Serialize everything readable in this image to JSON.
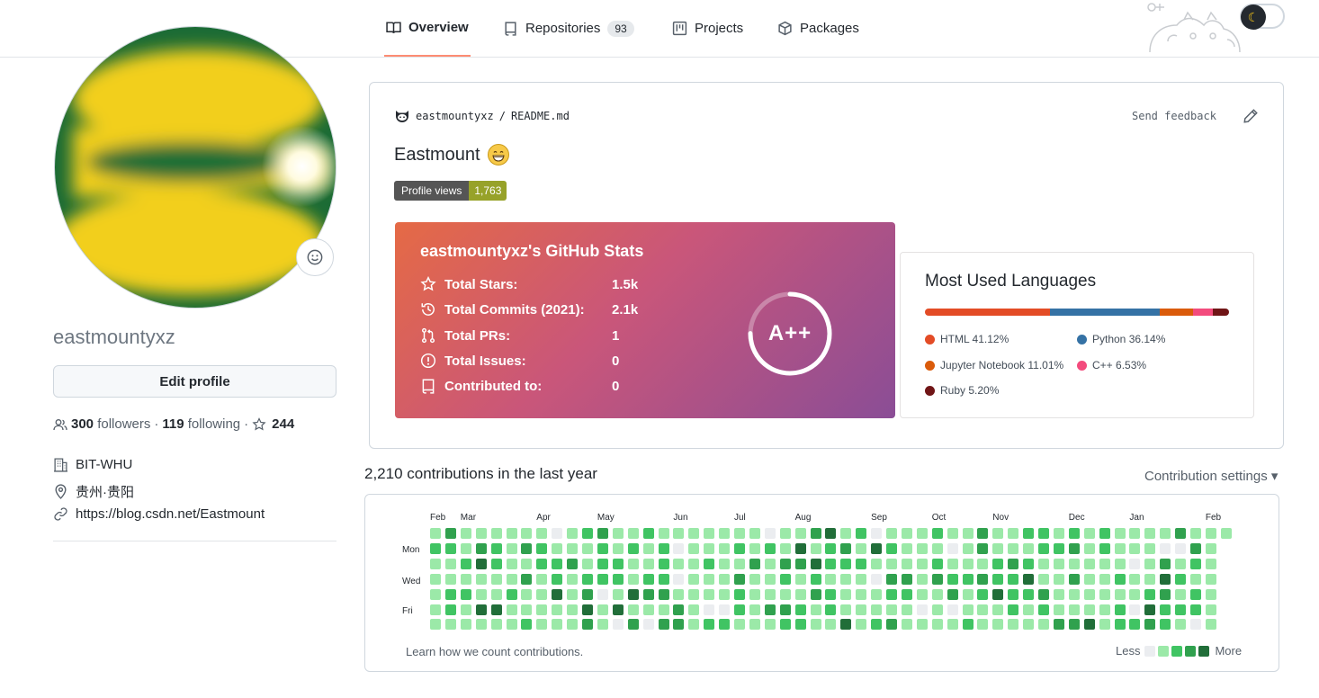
{
  "nav": {
    "tabs": [
      {
        "label": "Overview",
        "icon": "book-icon",
        "active": true
      },
      {
        "label": "Repositories",
        "icon": "repo-icon",
        "count": "93"
      },
      {
        "label": "Projects",
        "icon": "project-icon"
      },
      {
        "label": "Packages",
        "icon": "package-icon"
      }
    ],
    "theme_icon": "moon-icon"
  },
  "profile": {
    "username": "eastmountyxz",
    "edit_label": "Edit profile",
    "followers_count": "300",
    "followers_label": "followers",
    "following_count": "119",
    "following_label": "following",
    "stars_count": "244",
    "organization": "BIT-WHU",
    "location": "贵州·贵阳",
    "website": "https://blog.csdn.net/Eastmount"
  },
  "readme": {
    "owner": "eastmountyxz",
    "file": "README.md",
    "separator": "/",
    "send_feedback": "Send feedback",
    "title": "Eastmount",
    "badge_label": "Profile views",
    "badge_value": "1,763",
    "stats": {
      "title": "eastmountyxz's GitHub Stats",
      "rows": [
        {
          "label": "Total Stars:",
          "value": "1.5k",
          "icon": "star-icon"
        },
        {
          "label": "Total Commits (2021):",
          "value": "2.1k",
          "icon": "history-icon"
        },
        {
          "label": "Total PRs:",
          "value": "1",
          "icon": "pull-request-icon"
        },
        {
          "label": "Total Issues:",
          "value": "0",
          "icon": "issue-icon"
        },
        {
          "label": "Contributed to:",
          "value": "0",
          "icon": "repo-icon"
        }
      ],
      "grade": "A++",
      "grade_progress": 0.75
    },
    "languages": {
      "title": "Most Used Languages",
      "items": [
        {
          "name": "HTML",
          "percent": 41.12,
          "label": "HTML 41.12%",
          "color": "#e34c26"
        },
        {
          "name": "Python",
          "percent": 36.14,
          "label": "Python 36.14%",
          "color": "#3572A5"
        },
        {
          "name": "Jupyter Notebook",
          "percent": 11.01,
          "label": "Jupyter Notebook 11.01%",
          "color": "#DA5B0B"
        },
        {
          "name": "C++",
          "percent": 6.53,
          "label": "C++ 6.53%",
          "color": "#f34b7d"
        },
        {
          "name": "Ruby",
          "percent": 5.2,
          "label": "Ruby 5.20%",
          "color": "#701516"
        }
      ]
    }
  },
  "contributions": {
    "heading": "2,210 contributions in the last year",
    "settings_label": "Contribution settings ▾",
    "months": [
      "Feb",
      "Mar",
      "Apr",
      "May",
      "Jun",
      "Jul",
      "Aug",
      "Sep",
      "Oct",
      "Nov",
      "Dec",
      "Jan",
      "Feb"
    ],
    "month_weeks": [
      0,
      2,
      7,
      11,
      16,
      20,
      24,
      29,
      33,
      37,
      42,
      46,
      51
    ],
    "day_labels": [
      "Mon",
      "Wed",
      "Fri"
    ],
    "learn_label": "Learn how we count contributions.",
    "legend_less": "Less",
    "legend_more": "More",
    "level_colors": [
      "#ebedf0",
      "#9be9a8",
      "#40c463",
      "#30a14e",
      "#216e39"
    ]
  }
}
